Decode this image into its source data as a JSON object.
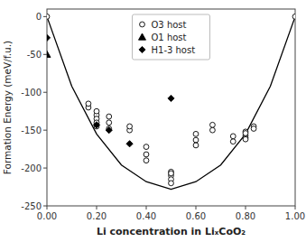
{
  "chart_data": {
    "type": "scatter",
    "xlabel": "Li concentration in LiₓCoO₂",
    "ylabel": "Formation Energy (meV/f.u.)",
    "xlim": [
      0.0,
      1.0
    ],
    "ylim": [
      -250,
      10
    ],
    "xticks": [
      {
        "value": 0.0,
        "label": "0.00"
      },
      {
        "value": 0.2,
        "label": "0.20"
      },
      {
        "value": 0.4,
        "label": "0.40"
      },
      {
        "value": 0.6,
        "label": "0.60"
      },
      {
        "value": 0.8,
        "label": "0.80"
      },
      {
        "value": 1.0,
        "label": "1.00"
      }
    ],
    "yticks": [
      0,
      -50,
      -100,
      -150,
      -200,
      -250
    ],
    "grid": false,
    "legend": "upper center",
    "series": [
      {
        "type": "line",
        "color": "black",
        "line_style": "solid",
        "x": [
          0.0,
          0.1,
          0.2,
          0.3,
          0.4,
          0.5,
          0.6,
          0.7,
          0.8,
          0.9,
          1.0
        ],
        "values": [
          0,
          -92,
          -155,
          -196,
          -218,
          -228,
          -218,
          -196,
          -155,
          -92,
          0
        ]
      },
      {
        "name": "O3 host",
        "type": "scatter",
        "marker": "circle",
        "color": "white",
        "x": [
          0.0,
          0.167,
          0.167,
          0.2,
          0.2,
          0.2,
          0.2,
          0.2,
          0.25,
          0.25,
          0.25,
          0.333,
          0.333,
          0.4,
          0.4,
          0.4,
          0.5,
          0.5,
          0.5,
          0.5,
          0.5,
          0.6,
          0.6,
          0.6,
          0.667,
          0.667,
          0.75,
          0.75,
          0.8,
          0.8,
          0.8,
          0.8,
          0.8,
          0.833,
          0.833,
          1.0
        ],
        "values": [
          0,
          -120,
          -115,
          -130,
          -135,
          -140,
          -145,
          -125,
          -140,
          -148,
          -132,
          -150,
          -145,
          -190,
          -182,
          -172,
          -205,
          -210,
          -215,
          -220,
          -207,
          -155,
          -163,
          -170,
          -150,
          -143,
          -158,
          -165,
          -152,
          -157,
          -160,
          -162,
          -154,
          -145,
          -148,
          0
        ]
      },
      {
        "name": "O1 host",
        "type": "scatter",
        "marker": "triangle",
        "color": "black",
        "x": [
          0.0
        ],
        "values": [
          -50
        ]
      },
      {
        "name": "H1-3 host",
        "type": "scatter",
        "marker": "diamond",
        "color": "black",
        "x": [
          0.0,
          0.2,
          0.25,
          0.333,
          0.5
        ],
        "values": [
          -28,
          -143,
          -150,
          -168,
          -108
        ]
      }
    ]
  }
}
